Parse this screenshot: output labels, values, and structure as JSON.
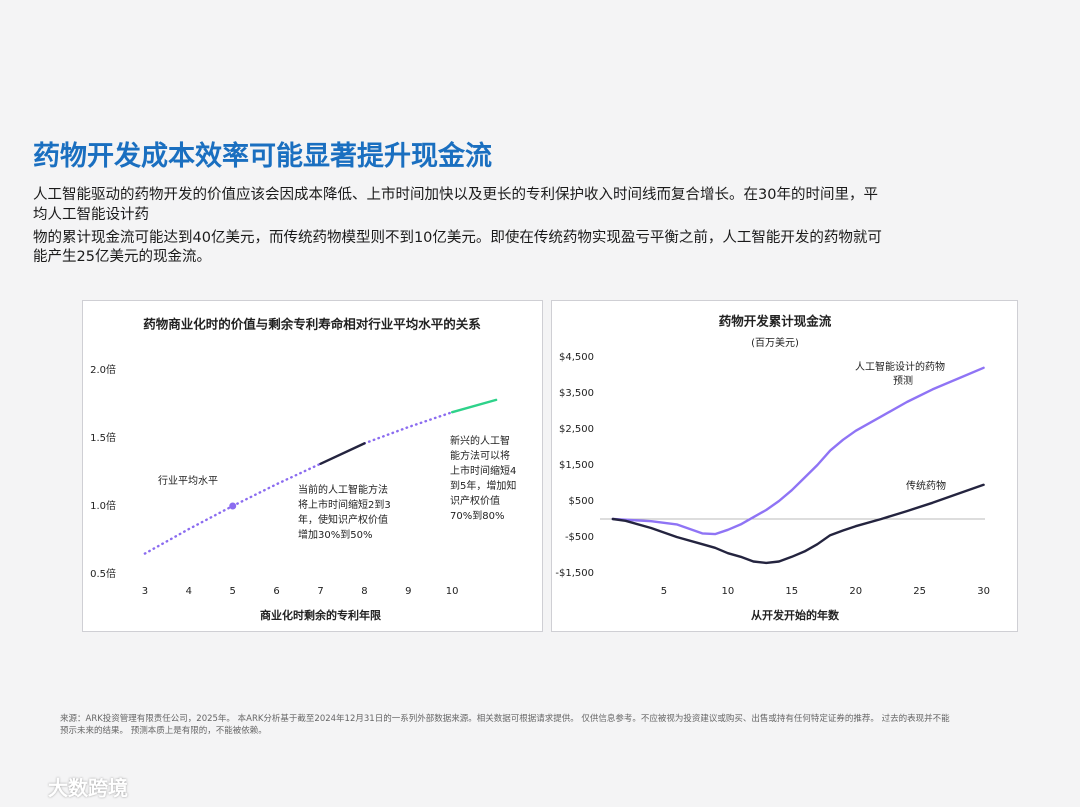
{
  "title": "药物开发成本效率可能显著提升现金流",
  "paragraph_lines": [
    "人工智能驱动的药物开发的价值应该会因成本降低、上市时间加快以及更长的专利保护收入时间线而复合增长。在30年的时间里，平",
    "均人工智能设计药",
    "物的累计现金流可能达到40亿美元，而传统药物模型则不到10亿美元。即使在传统药物实现盈亏平衡之前，人工智能开发的药物就可",
    "能产生25亿美元的现金流。"
  ],
  "chart_data": [
    {
      "type": "line",
      "title": "药物商业化时的价值与剩余专利寿命相对行业平均水平的关系",
      "x_label": "商业化时剩余的专利年限",
      "xlim": [
        2.5,
        11.5
      ],
      "xticks": [
        3,
        4,
        5,
        6,
        7,
        8,
        9,
        10
      ],
      "ylim": [
        0.5,
        2.0
      ],
      "yticks": [
        {
          "value": 0.5,
          "label": "0.5倍"
        },
        {
          "value": 1.0,
          "label": "1.0倍"
        },
        {
          "value": 1.5,
          "label": "1.5倍"
        },
        {
          "value": 2.0,
          "label": "2.0倍"
        }
      ],
      "series": [
        {
          "color": "#8b6cf0",
          "dash": "dotted",
          "x": [
            3,
            4,
            5,
            6,
            7,
            7.5,
            8,
            9,
            10
          ],
          "values": [
            0.65,
            0.83,
            1.0,
            1.16,
            1.31,
            null,
            1.46,
            1.58,
            1.69
          ]
        },
        {
          "color": "#24243f",
          "dash": "solid",
          "x": [
            7,
            8
          ],
          "values": [
            1.31,
            1.46
          ]
        },
        {
          "color": "#2ed28a",
          "dash": "solid",
          "x": [
            10,
            11
          ],
          "values": [
            1.69,
            1.78
          ]
        }
      ],
      "marker": {
        "x": 5,
        "value": 1.0,
        "color": "#8b6cf0"
      },
      "annotations": [
        {
          "lines": [
            "行业平均水平"
          ]
        },
        {
          "lines": [
            "当前的人工智能方法",
            "将上市时间缩短2到3",
            "年，使知识产权价值",
            "增加30%到50%"
          ]
        },
        {
          "lines": [
            "新兴的人工智",
            "能方法可以将",
            "上市时间缩短4",
            "到5年，增加知",
            "识产权价值",
            "70%到80%"
          ]
        }
      ]
    },
    {
      "type": "line",
      "title": "药物开发累计现金流",
      "subtitle": "(百万美元)",
      "x_label": "从开发开始的年数",
      "xlim": [
        0,
        30.5
      ],
      "xticks": [
        5,
        10,
        15,
        20,
        25,
        30
      ],
      "ylim": [
        -1500,
        4500
      ],
      "yticks": [
        {
          "value": -1500,
          "label": "-$1,500"
        },
        {
          "value": -500,
          "label": "-$500"
        },
        {
          "value": 500,
          "label": "$500"
        },
        {
          "value": 1500,
          "label": "$1,500"
        },
        {
          "value": 2500,
          "label": "$2,500"
        },
        {
          "value": 3500,
          "label": "$3,500"
        },
        {
          "value": 4500,
          "label": "$4,500"
        }
      ],
      "reference_line": 0,
      "series": [
        {
          "label": [
            "人工智能设计的药物",
            "预测"
          ],
          "color": "#8f74f5",
          "dash": "solid",
          "x": [
            1,
            2,
            4,
            6,
            8,
            9,
            10,
            11,
            12,
            13,
            14,
            15,
            16,
            17,
            18,
            19,
            20,
            22,
            24,
            26,
            28,
            30
          ],
          "values": [
            0,
            -20,
            -60,
            -150,
            -400,
            -420,
            -300,
            -150,
            50,
            250,
            500,
            800,
            1150,
            1500,
            1900,
            2200,
            2450,
            2850,
            3250,
            3600,
            3900,
            4200
          ]
        },
        {
          "label": [
            "传统药物"
          ],
          "color": "#24243f",
          "dash": "solid",
          "x": [
            1,
            2,
            4,
            6,
            8,
            9,
            10,
            11,
            12,
            13,
            14,
            15,
            16,
            17,
            18,
            19,
            20,
            22,
            24,
            26,
            28,
            30
          ],
          "values": [
            0,
            -50,
            -250,
            -500,
            -700,
            -800,
            -950,
            -1050,
            -1180,
            -1220,
            -1180,
            -1050,
            -900,
            -700,
            -450,
            -320,
            -200,
            0,
            220,
            450,
            700,
            950
          ]
        }
      ]
    }
  ],
  "footnote_lines": [
    "来源：ARK投资管理有限责任公司，2025年。 本ARK分析基于截至2024年12月31日的一系列外部数据来源。相关数据可根据请求提供。 仅供信息参考。不应被视为投资建议或购买、出售或持有任何特定证券的推荐。 过去的表现并不能",
    "预示未来的结果。 预测本质上是有限的，不能被依赖。"
  ],
  "watermark": "大数跨境"
}
